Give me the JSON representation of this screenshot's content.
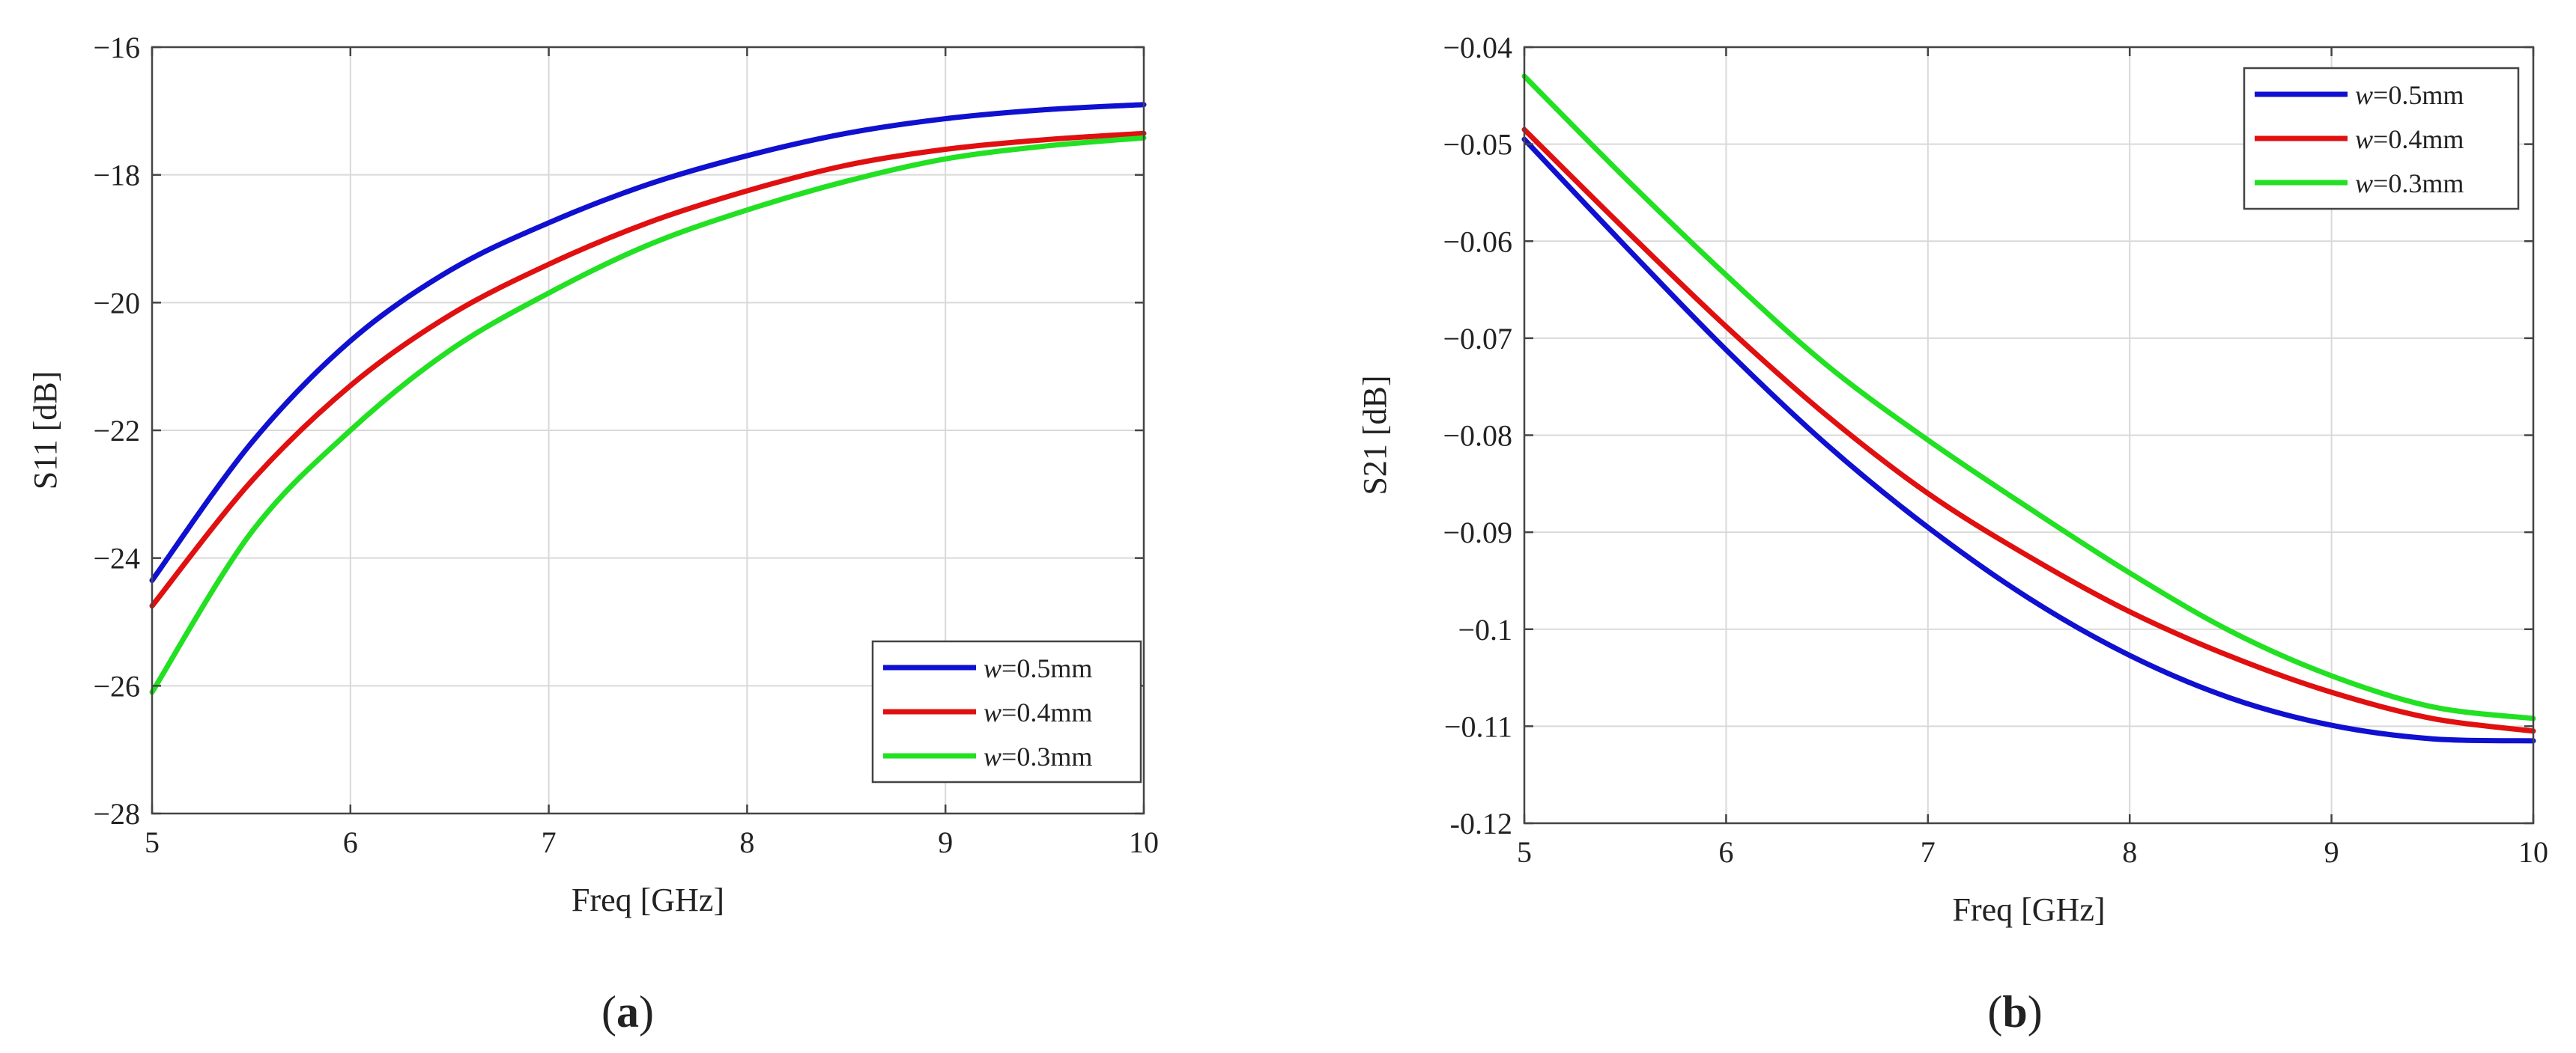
{
  "chart_data": [
    {
      "type": "line",
      "panel_label": "a",
      "xlabel": "Freq [GHz]",
      "ylabel": "S11 [dB]",
      "xlim": [
        5,
        10
      ],
      "ylim": [
        -28,
        -16
      ],
      "xticks": [
        5,
        6,
        7,
        8,
        9,
        10
      ],
      "yticks": [
        -28,
        -26,
        -24,
        -22,
        -20,
        -18,
        -16
      ],
      "ytick_labels": [
        "−28",
        "−26",
        "−24",
        "−22",
        "−20",
        "−18",
        "−16"
      ],
      "grid": true,
      "legend_position": "bottom-right",
      "x": [
        5,
        5.5,
        6,
        6.5,
        7,
        7.5,
        8,
        8.5,
        9,
        9.5,
        10
      ],
      "series": [
        {
          "name": "w",
          "suffix": "=0.5mm",
          "color": "#1010d0",
          "values": [
            -24.35,
            -22.2,
            -20.6,
            -19.5,
            -18.75,
            -18.15,
            -17.7,
            -17.35,
            -17.12,
            -16.98,
            -16.9
          ]
        },
        {
          "name": "w",
          "suffix": "=0.4mm",
          "color": "#e01010",
          "values": [
            -24.75,
            -22.8,
            -21.3,
            -20.2,
            -19.4,
            -18.75,
            -18.25,
            -17.85,
            -17.6,
            -17.45,
            -17.35
          ]
        },
        {
          "name": "w",
          "suffix": "=0.3mm",
          "color": "#22e022",
          "values": [
            -26.1,
            -23.6,
            -22.0,
            -20.75,
            -19.85,
            -19.1,
            -18.55,
            -18.1,
            -17.75,
            -17.55,
            -17.42
          ]
        }
      ]
    },
    {
      "type": "line",
      "panel_label": "b",
      "xlabel": "Freq [GHz]",
      "ylabel": "S21 [dB]",
      "xlim": [
        5,
        10
      ],
      "ylim": [
        -0.12,
        -0.04
      ],
      "xticks": [
        5,
        6,
        7,
        8,
        9,
        10
      ],
      "yticks": [
        -0.12,
        -0.11,
        -0.1,
        -0.09,
        -0.08,
        -0.07,
        -0.06,
        -0.05,
        -0.04
      ],
      "ytick_labels": [
        "-0.12",
        "−0.11",
        "−0.1",
        "−0.09",
        "−0.08",
        "−0.07",
        "−0.06",
        "−0.05",
        "−0.04"
      ],
      "grid": true,
      "legend_position": "top-right",
      "x": [
        5,
        5.5,
        6,
        6.5,
        7,
        7.5,
        8,
        8.5,
        9,
        9.5,
        10
      ],
      "series": [
        {
          "name": "w",
          "suffix": "=0.5mm",
          "color": "#1010d0",
          "values": [
            -0.0495,
            -0.0605,
            -0.0712,
            -0.081,
            -0.0895,
            -0.0968,
            -0.1027,
            -0.1071,
            -0.1099,
            -0.1113,
            -0.1115
          ]
        },
        {
          "name": "w",
          "suffix": "=0.4mm",
          "color": "#e01010",
          "values": [
            -0.0485,
            -0.0588,
            -0.0688,
            -0.078,
            -0.086,
            -0.0925,
            -0.0982,
            -0.1028,
            -0.1065,
            -0.1092,
            -0.1105
          ]
        },
        {
          "name": "w",
          "suffix": "=0.3mm",
          "color": "#22e022",
          "values": [
            -0.043,
            -0.0535,
            -0.0635,
            -0.0728,
            -0.0805,
            -0.0875,
            -0.0942,
            -0.1002,
            -0.1048,
            -0.108,
            -0.1092
          ]
        }
      ]
    }
  ]
}
